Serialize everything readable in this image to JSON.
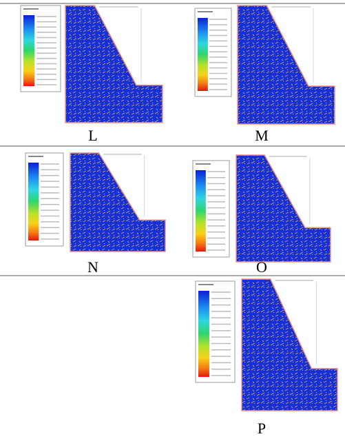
{
  "panels": [
    {
      "label": "L"
    },
    {
      "label": "M"
    },
    {
      "label": "N"
    },
    {
      "label": "O"
    },
    {
      "label": "P"
    }
  ]
}
